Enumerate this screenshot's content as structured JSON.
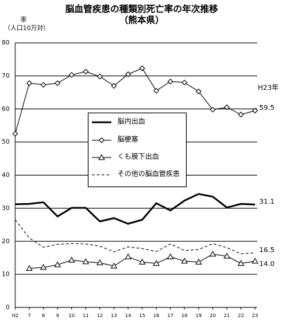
{
  "chart_data": {
    "type": "line",
    "title": "脳血管疾患の種類別死亡率の年次推移",
    "subtitle": "（熊本県）",
    "y_label": "率",
    "y_unit": "（人口10万対）",
    "annotation": "H23年",
    "categories": [
      "H2",
      "7",
      "8",
      "9",
      "10",
      "11",
      "12",
      "13",
      "14",
      "15",
      "16",
      "17",
      "18",
      "19",
      "20",
      "21",
      "22",
      "23"
    ],
    "ylim": [
      0,
      80
    ],
    "yticks": [
      0,
      10,
      20,
      30,
      40,
      50,
      60,
      70,
      80
    ],
    "grid": true,
    "series": [
      {
        "name": "脳内出血",
        "color": "#000000",
        "line_width": 2.5,
        "marker": "none",
        "dashed": false,
        "values": [
          31.2,
          31.3,
          31.8,
          27.5,
          30.1,
          30.1,
          26.0,
          27.0,
          25.3,
          26.5,
          31.5,
          29.3,
          32.3,
          34.3,
          33.5,
          30.2,
          31.3,
          31.1
        ],
        "value_labels": [
          null,
          null,
          null,
          null,
          null,
          null,
          null,
          null,
          null,
          null,
          null,
          null,
          null,
          null,
          null,
          null,
          null,
          "31.1"
        ]
      },
      {
        "name": "脳梗塞",
        "color": "#000000",
        "line_width": 1,
        "marker": "diamond",
        "dashed": false,
        "values": [
          52.5,
          67.8,
          67.3,
          67.8,
          70.3,
          71.3,
          69.8,
          67.0,
          70.5,
          72.3,
          65.5,
          68.3,
          68.0,
          65.3,
          59.8,
          60.5,
          58.3,
          59.5
        ],
        "value_labels": [
          null,
          null,
          null,
          null,
          null,
          null,
          null,
          null,
          null,
          null,
          null,
          null,
          null,
          null,
          null,
          null,
          null,
          "59.5"
        ]
      },
      {
        "name": "くも膜下出血",
        "color": "#000000",
        "line_width": 1,
        "marker": "triangle",
        "dashed": false,
        "values": [
          null,
          11.8,
          12.1,
          12.9,
          14.3,
          13.8,
          13.5,
          12.5,
          15.3,
          13.7,
          13.3,
          15.3,
          14.0,
          13.7,
          16.1,
          15.5,
          13.3,
          14.0
        ],
        "value_labels": [
          null,
          null,
          null,
          null,
          null,
          null,
          null,
          null,
          null,
          null,
          null,
          null,
          null,
          null,
          null,
          null,
          null,
          "14.0"
        ]
      },
      {
        "name": "その他の脳血管疾患",
        "color": "#000000",
        "line_width": 1,
        "marker": "none",
        "dashed": true,
        "values": [
          26.5,
          21.0,
          18.2,
          19.1,
          19.3,
          19.2,
          18.5,
          16.8,
          18.3,
          17.8,
          16.9,
          19.2,
          17.2,
          17.5,
          19.3,
          18.1,
          16.2,
          16.5
        ],
        "value_labels": [
          null,
          null,
          null,
          null,
          null,
          null,
          null,
          null,
          null,
          null,
          null,
          null,
          null,
          null,
          null,
          null,
          null,
          "16.5"
        ]
      }
    ]
  }
}
